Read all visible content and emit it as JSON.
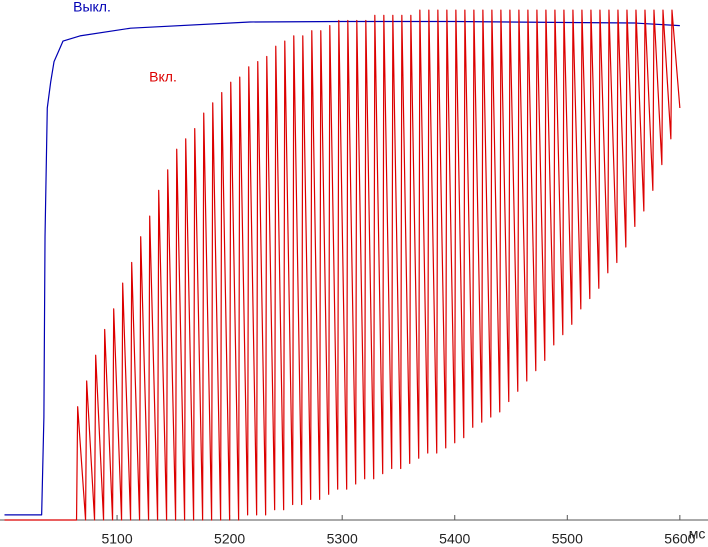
{
  "chart_data": {
    "type": "line",
    "x_label": "мс",
    "xlim": [
      4996,
      5625
    ],
    "ylim": [
      0,
      100
    ],
    "xticks": [
      5100,
      5200,
      5300,
      5400,
      5500,
      5600
    ],
    "series": [
      {
        "name": "Выкл.",
        "color": "#0000b4",
        "x": [
          5000,
          5033,
          5035,
          5036,
          5038,
          5041,
          5044,
          5048,
          5052,
          5067,
          5112,
          5218,
          5300,
          5400,
          5500,
          5560,
          5600
        ],
        "values": [
          1,
          1,
          20,
          55,
          80,
          85,
          89,
          91,
          93,
          94,
          95.5,
          96.7,
          96.8,
          96.8,
          96.6,
          96.5,
          96
        ]
      },
      {
        "name": "Вкл.",
        "color": "#dc0000",
        "x": [
          5000,
          5064,
          5065,
          5072,
          5073,
          5080,
          5081,
          5088,
          5089,
          5096,
          5097,
          5104,
          5105,
          5112,
          5113,
          5120,
          5121,
          5128,
          5129,
          5136,
          5137,
          5144,
          5145,
          5152,
          5153,
          5160,
          5161,
          5168,
          5169,
          5176,
          5177,
          5184,
          5185,
          5192,
          5193,
          5200,
          5201,
          5208,
          5209,
          5216,
          5217,
          5224,
          5225,
          5232,
          5233,
          5240,
          5241,
          5248,
          5249,
          5256,
          5257,
          5264,
          5265,
          5272,
          5273,
          5280,
          5281,
          5288,
          5289,
          5296,
          5297,
          5304,
          5305,
          5312,
          5313,
          5320,
          5321,
          5328,
          5329,
          5336,
          5337,
          5344,
          5345,
          5352,
          5353,
          5360,
          5361,
          5368,
          5369,
          5376,
          5377,
          5384,
          5385,
          5392,
          5393,
          5400,
          5401,
          5408,
          5409,
          5416,
          5417,
          5424,
          5425,
          5432,
          5433,
          5440,
          5441,
          5448,
          5449,
          5456,
          5457,
          5464,
          5465,
          5472,
          5473,
          5480,
          5481,
          5488,
          5489,
          5496,
          5497,
          5504,
          5505,
          5512,
          5513,
          5520,
          5521,
          5528,
          5529,
          5536,
          5537,
          5544,
          5545,
          5552,
          5553,
          5560,
          5561,
          5568,
          5569,
          5576,
          5577,
          5584,
          5585,
          5592,
          5593,
          5600
        ],
        "values": [
          0,
          0,
          22,
          0,
          27,
          0,
          32,
          0,
          37,
          0,
          41,
          0,
          46,
          0,
          50,
          0,
          55,
          0,
          59,
          0,
          64,
          0,
          68,
          0,
          72,
          0,
          74,
          0,
          76,
          0,
          79,
          0,
          81,
          0,
          83,
          0,
          85,
          0,
          86,
          1,
          88,
          1,
          89,
          1,
          90,
          2,
          92,
          2,
          93,
          3,
          94,
          3,
          94,
          4,
          95,
          4,
          95,
          5,
          96,
          6,
          97,
          6,
          97,
          7,
          97,
          8,
          97,
          8,
          98,
          9,
          98,
          10,
          98,
          10,
          98,
          11,
          98,
          12,
          99,
          13,
          99,
          13,
          99,
          14,
          99,
          15,
          99,
          16,
          99,
          18,
          99,
          19,
          99,
          20,
          99,
          21,
          99,
          23,
          99,
          25,
          99,
          27,
          99,
          29,
          99,
          31,
          99,
          34,
          99,
          36,
          99,
          38,
          99,
          41,
          99,
          43,
          99,
          45,
          99,
          48,
          99,
          50,
          99,
          53,
          99,
          57,
          99,
          60,
          99,
          64,
          99,
          69,
          99,
          74,
          99,
          80
        ]
      }
    ]
  }
}
